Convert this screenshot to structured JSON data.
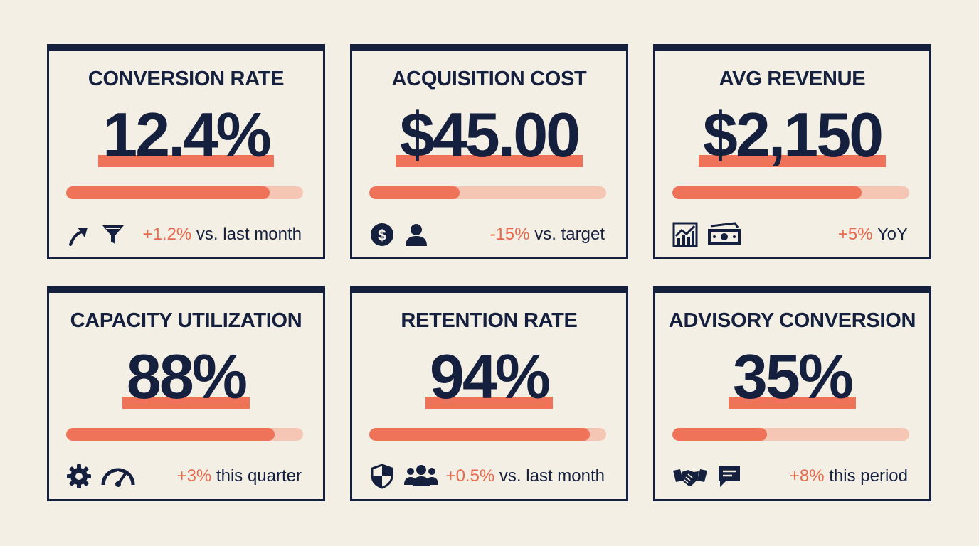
{
  "colors": {
    "navy": "#15203F",
    "accent": "#EE7359",
    "track": "#F6C6B5",
    "background": "#F4EFE4"
  },
  "cards": [
    {
      "title": "CONVERSION RATE",
      "value": "12.4%",
      "progress": 0.86,
      "icons": [
        "trend-up-arrow-icon",
        "funnel-icon"
      ],
      "delta": "+1.2%",
      "delta_suffix": " vs. last month"
    },
    {
      "title": "ACQUISITION COST",
      "value": "$45.00",
      "progress": 0.38,
      "icons": [
        "dollar-coin-icon",
        "user-icon"
      ],
      "delta": "-15%",
      "delta_suffix": " vs. target"
    },
    {
      "title": "AVG REVENUE",
      "value": "$2,150",
      "progress": 0.8,
      "icons": [
        "growth-chart-icon",
        "cash-icon"
      ],
      "delta": "+5%",
      "delta_suffix": " YoY"
    },
    {
      "title": "CAPACITY UTILIZATION",
      "value": "88%",
      "progress": 0.88,
      "icons": [
        "gear-icon",
        "speedometer-icon"
      ],
      "delta": "+3%",
      "delta_suffix": " this quarter"
    },
    {
      "title": "RETENTION RATE",
      "value": "94%",
      "progress": 0.93,
      "icons": [
        "shield-icon",
        "user-group-icon"
      ],
      "delta": "+0.5%",
      "delta_suffix": " vs. last month"
    },
    {
      "title": "ADVISORY CONVERSION",
      "value": "35%",
      "progress": 0.4,
      "icons": [
        "handshake-icon",
        "chat-bubble-icon"
      ],
      "delta": "+8%",
      "delta_suffix": " this period"
    }
  ]
}
